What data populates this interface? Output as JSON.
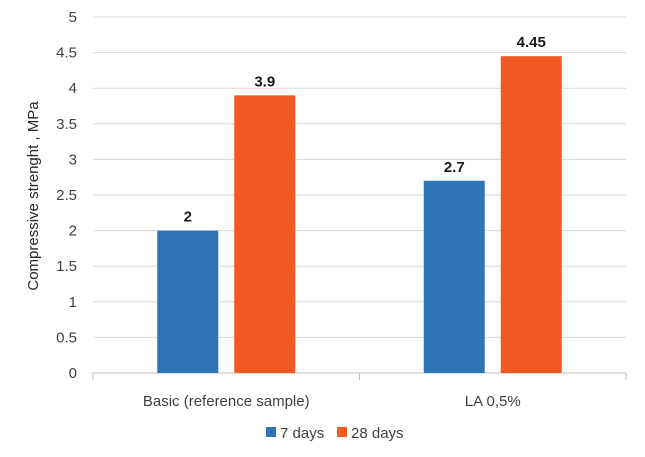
{
  "chart_data": {
    "type": "bar",
    "title": "",
    "xlabel": "",
    "ylabel": "Compressive strenght , MPa",
    "ylim": [
      0,
      5
    ],
    "yticks": [
      0,
      0.5,
      1,
      1.5,
      2,
      2.5,
      3,
      3.5,
      4,
      4.5,
      5
    ],
    "ytick_labels": [
      "0",
      "0.5",
      "1",
      "1.5",
      "2",
      "2.5",
      "3",
      "3.5",
      "4",
      "4.5",
      "5"
    ],
    "grid": true,
    "legend_position": "bottom",
    "categories": [
      "Basic (reference sample)",
      "LA 0,5%"
    ],
    "series": [
      {
        "name": "7 days",
        "color": "#2e75b6",
        "values": [
          2,
          2.7
        ],
        "labels": [
          "2",
          "2.7"
        ]
      },
      {
        "name": "28 days",
        "color": "#f05a22",
        "values": [
          3.9,
          4.45
        ],
        "labels": [
          "3.9",
          "4.45"
        ]
      }
    ]
  }
}
